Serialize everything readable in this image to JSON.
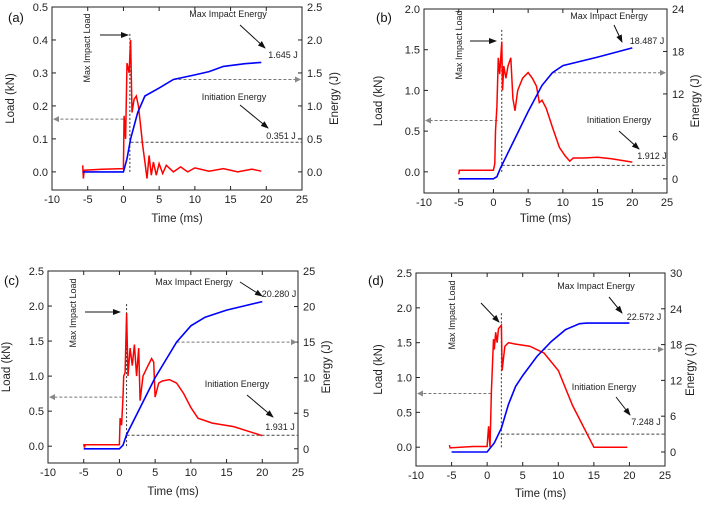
{
  "chart_data": [
    {
      "type": "line",
      "panel_label": "(a)",
      "xlabel": "Time (ms)",
      "ylabel": "Load (kN)",
      "y2label": "Energy (J)",
      "xlim": [
        -10,
        25
      ],
      "xticks": [
        "-10",
        "-5",
        "0",
        "5",
        "10",
        "15",
        "20",
        "25"
      ],
      "ylim": [
        -0.055,
        0.5
      ],
      "yticks": [
        "0.0",
        "0.1",
        "0.2",
        "0.3",
        "0.4",
        "0.5"
      ],
      "y2lim": [
        -0.275,
        2.5
      ],
      "y2ticks": [
        "0.0",
        "0.5",
        "1.0",
        "1.5",
        "2.0",
        "2.5"
      ],
      "colors": {
        "load": "#ff0000",
        "energy": "#0000ff",
        "guide": "#777777"
      },
      "load": [
        [
          -5.7,
          0.02
        ],
        [
          -5.6,
          -0.02
        ],
        [
          -5.5,
          0.005
        ],
        [
          -3,
          0.008
        ],
        [
          0,
          0.01
        ],
        [
          0.1,
          0.17
        ],
        [
          0.3,
          0.1
        ],
        [
          0.5,
          0.33
        ],
        [
          0.8,
          0.3
        ],
        [
          1.0,
          0.4
        ],
        [
          1.2,
          0.18
        ],
        [
          1.5,
          0.22
        ],
        [
          1.8,
          0.23
        ],
        [
          2.1,
          0.2
        ],
        [
          2.4,
          0.14
        ],
        [
          2.7,
          0.08
        ],
        [
          3.0,
          0.03
        ],
        [
          3.3,
          -0.02
        ],
        [
          3.6,
          0.05
        ],
        [
          3.9,
          -0.01
        ],
        [
          4.2,
          0.03
        ],
        [
          4.6,
          -0.01
        ],
        [
          5,
          0.025
        ],
        [
          5.5,
          -0.005
        ],
        [
          6,
          0.02
        ],
        [
          7,
          0
        ],
        [
          8,
          0.015
        ],
        [
          9,
          0
        ],
        [
          10,
          0.012
        ],
        [
          12,
          0.002
        ],
        [
          14,
          0.01
        ],
        [
          16,
          0.0
        ],
        [
          18,
          0.008
        ],
        [
          19.3,
          0.002
        ]
      ],
      "energy": [
        [
          -5.7,
          0
        ],
        [
          0,
          0
        ],
        [
          0.5,
          0.2
        ],
        [
          1,
          0.5
        ],
        [
          2,
          0.9
        ],
        [
          3,
          1.15
        ],
        [
          5,
          1.27
        ],
        [
          7,
          1.4
        ],
        [
          10,
          1.47
        ],
        [
          12,
          1.52
        ],
        [
          14,
          1.6
        ],
        [
          17,
          1.64
        ],
        [
          19.3,
          1.66
        ]
      ],
      "annotations": {
        "max_load": "Max Impact Load",
        "max_energy": "Max Impact Energy",
        "max_energy_value": "1.645 J",
        "init_energy": "Initiation Energy",
        "init_energy_value": "0.351 J"
      },
      "guides": {
        "peak_time": 0.9,
        "peak_load": 0.42,
        "load_level": 0.16,
        "load_time": 0.0,
        "energy_level": 1.4,
        "energy_time": 7,
        "init_level": 0.45,
        "init_time": 1.0
      }
    },
    {
      "type": "line",
      "panel_label": "(b)",
      "xlabel": "Time (ms)",
      "ylabel": "Load (kN)",
      "y2label": "Energy (J)",
      "xlim": [
        -10,
        25
      ],
      "xticks": [
        "-10",
        "-5",
        "0",
        "5",
        "10",
        "15",
        "20",
        "25"
      ],
      "ylim": [
        -0.26,
        2.0
      ],
      "yticks": [
        "0.0",
        "0.5",
        "1.0",
        "1.5",
        "2.0"
      ],
      "y2lim": [
        -2,
        24
      ],
      "y2ticks": [
        "0",
        "6",
        "12",
        "18",
        "24"
      ],
      "colors": {
        "load": "#ff0000",
        "energy": "#0000ff",
        "guide": "#777777"
      },
      "load": [
        [
          -5,
          -0.03
        ],
        [
          -4.9,
          0.02
        ],
        [
          -2,
          0.02
        ],
        [
          0,
          0.02
        ],
        [
          0.2,
          0.1
        ],
        [
          0.3,
          0.5
        ],
        [
          0.5,
          0.8
        ],
        [
          0.7,
          1.4
        ],
        [
          0.9,
          1.2
        ],
        [
          1.2,
          1.6
        ],
        [
          1.3,
          1.0
        ],
        [
          1.5,
          1.3
        ],
        [
          1.8,
          1.15
        ],
        [
          2.1,
          1.3
        ],
        [
          2.5,
          1.4
        ],
        [
          2.8,
          0.9
        ],
        [
          3.1,
          0.75
        ],
        [
          3.5,
          1.0
        ],
        [
          4.2,
          1.15
        ],
        [
          5,
          1.22
        ],
        [
          5.6,
          1.15
        ],
        [
          6.2,
          1.05
        ],
        [
          6.6,
          0.85
        ],
        [
          7,
          0.88
        ],
        [
          7.6,
          0.78
        ],
        [
          8.5,
          0.55
        ],
        [
          9.5,
          0.3
        ],
        [
          10.3,
          0.2
        ],
        [
          11,
          0.13
        ],
        [
          11.5,
          0.17
        ],
        [
          13,
          0.17
        ],
        [
          15,
          0.18
        ],
        [
          17,
          0.16
        ],
        [
          20,
          0.12
        ]
      ],
      "energy": [
        [
          -5,
          0
        ],
        [
          0,
          0
        ],
        [
          0.5,
          0.3
        ],
        [
          1,
          1.5
        ],
        [
          3,
          5.5
        ],
        [
          5,
          9.5
        ],
        [
          7,
          13.2
        ],
        [
          8.5,
          15
        ],
        [
          10,
          16
        ],
        [
          15,
          17.2
        ],
        [
          20,
          18.5
        ]
      ],
      "annotations": {
        "max_load": "Max Impact Load",
        "max_energy": "Max Impact Energy",
        "max_energy_value": "18.487 J",
        "init_energy": "Initiation Energy",
        "init_energy_value": "1.912 J"
      },
      "guides": {
        "peak_time": 1.2,
        "peak_load": 1.75,
        "load_level": 0.63,
        "load_time": 0.6,
        "energy_level": 15,
        "energy_time": 8.6,
        "init_level": 1.9,
        "init_time": 1.2
      }
    },
    {
      "type": "line",
      "panel_label": "(c)",
      "xlabel": "Time (ms)",
      "ylabel": "Load (kN)",
      "y2label": "Energy (J)",
      "xlim": [
        -10,
        25
      ],
      "xticks": [
        "-10",
        "-5",
        "0",
        "5",
        "10",
        "15",
        "20",
        "25"
      ],
      "ylim": [
        -0.24,
        2.5
      ],
      "yticks": [
        "0.0",
        "0.5",
        "1.0",
        "1.5",
        "2.0",
        "2.5"
      ],
      "y2lim": [
        -2,
        25
      ],
      "y2ticks": [
        "0",
        "5",
        "10",
        "15",
        "20",
        "25"
      ],
      "colors": {
        "load": "#ff0000",
        "energy": "#0000ff",
        "guide": "#777777"
      },
      "load": [
        [
          -5,
          0.03
        ],
        [
          -4.9,
          -0.02
        ],
        [
          -4.8,
          0.02
        ],
        [
          -2,
          0.02
        ],
        [
          0,
          0.02
        ],
        [
          0.1,
          0.4
        ],
        [
          0.3,
          0.3
        ],
        [
          0.5,
          0.7
        ],
        [
          0.6,
          1.0
        ],
        [
          0.8,
          1.05
        ],
        [
          1.0,
          1.9
        ],
        [
          1.2,
          1.0
        ],
        [
          1.5,
          1.4
        ],
        [
          1.8,
          1.15
        ],
        [
          2.1,
          1.45
        ],
        [
          2.4,
          1.0
        ],
        [
          2.7,
          1.4
        ],
        [
          2.9,
          0.65
        ],
        [
          3.3,
          1.0
        ],
        [
          4,
          1.15
        ],
        [
          4.5,
          1.25
        ],
        [
          4.8,
          1.2
        ],
        [
          5.0,
          0.7
        ],
        [
          5.5,
          0.9
        ],
        [
          6,
          0.93
        ],
        [
          7,
          0.95
        ],
        [
          8,
          0.9
        ],
        [
          9,
          0.75
        ],
        [
          10,
          0.55
        ],
        [
          11,
          0.4
        ],
        [
          13,
          0.33
        ],
        [
          16,
          0.28
        ],
        [
          20,
          0.15
        ]
      ],
      "energy": [
        [
          -5,
          0
        ],
        [
          0,
          0
        ],
        [
          0.5,
          0.5
        ],
        [
          1,
          2
        ],
        [
          3,
          6
        ],
        [
          5,
          10
        ],
        [
          8,
          15
        ],
        [
          10,
          17.3
        ],
        [
          12,
          18.5
        ],
        [
          15,
          19.5
        ],
        [
          20,
          20.7
        ]
      ],
      "annotations": {
        "max_load": "Max Impact Load",
        "max_energy": "Max Impact Energy",
        "max_energy_value": "20.280 J",
        "init_energy": "Initiation Energy",
        "init_energy_value": "1.931 J"
      },
      "guides": {
        "peak_time": 1.0,
        "peak_load": 2.05,
        "load_level": 0.7,
        "load_time": 0.4,
        "energy_level": 15,
        "energy_time": 8,
        "init_level": 1.9,
        "init_time": 1.0
      }
    },
    {
      "type": "line",
      "panel_label": "(d)",
      "xlabel": "Time (ms)",
      "ylabel": "Load (kN)",
      "y2label": "Energy (J)",
      "xlim": [
        -10,
        25
      ],
      "xticks": [
        "-10",
        "-5",
        "0",
        "5",
        "10",
        "15",
        "20",
        "25"
      ],
      "ylim": [
        -0.27,
        2.5
      ],
      "yticks": [
        "0.0",
        "0.5",
        "1.0",
        "1.5",
        "2.0",
        "2.5"
      ],
      "y2lim": [
        -2.35,
        30
      ],
      "y2ticks": [
        "0",
        "6",
        "12",
        "18",
        "24",
        "30"
      ],
      "colors": {
        "load": "#ff0000",
        "energy": "#0000ff",
        "guide": "#777777"
      },
      "load": [
        [
          -5.3,
          0.03
        ],
        [
          -5.2,
          -0.01
        ],
        [
          -2,
          0.01
        ],
        [
          0,
          0.01
        ],
        [
          0.2,
          0.3
        ],
        [
          0.4,
          0.0
        ],
        [
          0.6,
          0.8
        ],
        [
          0.9,
          1.55
        ],
        [
          1.0,
          1.4
        ],
        [
          1.2,
          1.65
        ],
        [
          1.4,
          1.5
        ],
        [
          1.6,
          1.7
        ],
        [
          2,
          1.75
        ],
        [
          2.1,
          1.1
        ],
        [
          2.5,
          1.45
        ],
        [
          3,
          1.5
        ],
        [
          4,
          1.48
        ],
        [
          6,
          1.45
        ],
        [
          8,
          1.35
        ],
        [
          10,
          1.1
        ],
        [
          12,
          0.6
        ],
        [
          14.5,
          0.1
        ],
        [
          15,
          0.0
        ],
        [
          17,
          0.0
        ],
        [
          19.7,
          0.0
        ]
      ],
      "energy": [
        [
          -5,
          0
        ],
        [
          0,
          0
        ],
        [
          1,
          1.5
        ],
        [
          2,
          4
        ],
        [
          3,
          8
        ],
        [
          4,
          11
        ],
        [
          5,
          12.8
        ],
        [
          7,
          16
        ],
        [
          9,
          18.5
        ],
        [
          11,
          20.5
        ],
        [
          13,
          21.5
        ],
        [
          14,
          21.6
        ],
        [
          20,
          21.6
        ]
      ],
      "annotations": {
        "max_load": "Max Impact Load",
        "max_energy": "Max Impact Energy",
        "max_energy_value": "22.572 J",
        "init_energy": "Initiation Energy",
        "init_energy_value": "7.248 J"
      },
      "guides": {
        "peak_time": 2.0,
        "peak_load": 1.95,
        "load_level": 0.77,
        "load_time": 0.6,
        "energy_level": 17.2,
        "energy_time": 7.8,
        "init_level": 3,
        "init_time": 2.0
      }
    }
  ]
}
